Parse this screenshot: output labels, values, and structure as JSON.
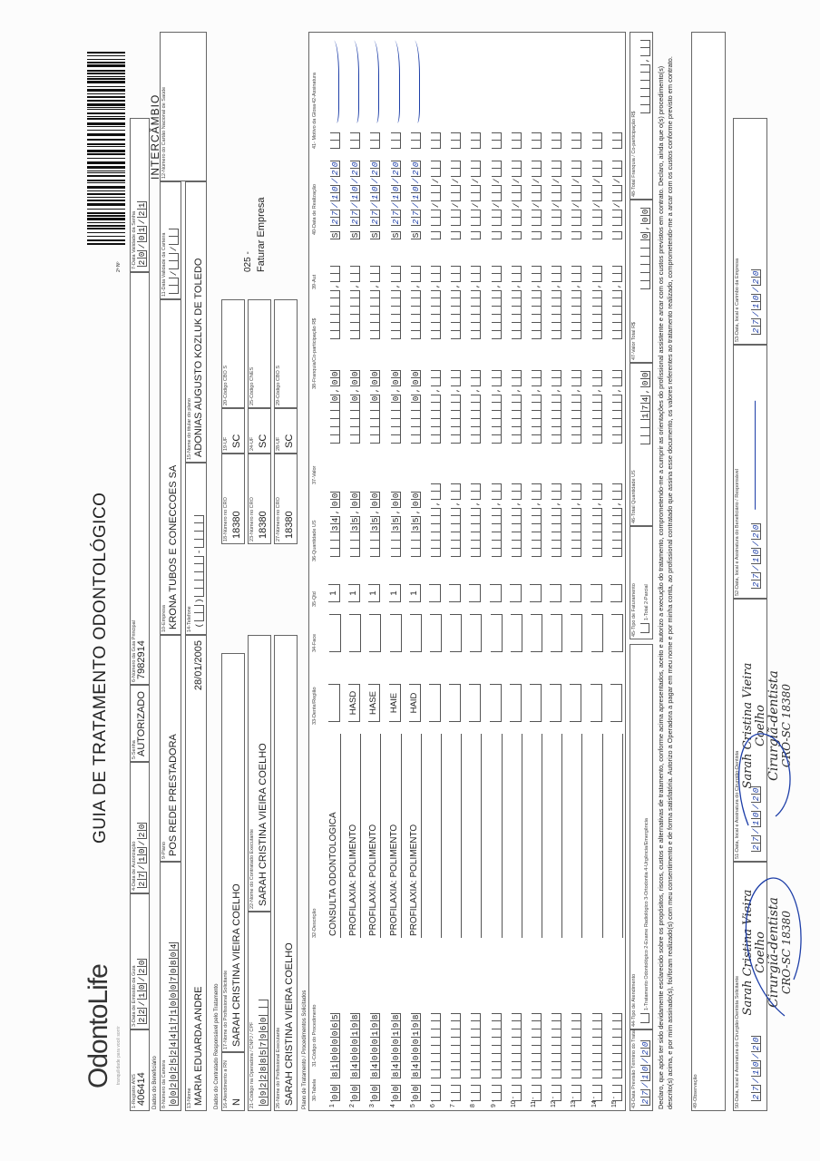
{
  "header": {
    "logo": "OdontoLife",
    "tagline": "tranquilidade para você sorrir",
    "title": "GUIA DE TRATAMENTO ODONTOLÓGICO",
    "copy_label": "2ª Nº",
    "guide_number": "401847",
    "guide_type": "INTERCÂMBIO"
  },
  "sections": {
    "beneficiary": "Dados do Beneficiário",
    "contractor": "Dados do Contratado Responsável pelo Tratamento",
    "plan": "Plano de Tratamento / Procedimentos Solicitados"
  },
  "fields": {
    "reg_ans": {
      "label": "1-Registro ANS",
      "value": "406414"
    },
    "emission_date": {
      "label": "3-Data de Emissão da Guia",
      "cells": "22/10/20"
    },
    "auth_date": {
      "label": "4-Data de Autorização",
      "cells": "27/10/20"
    },
    "password": {
      "label": "5-Senha",
      "value": "AUTORIZADO"
    },
    "main_guide": {
      "label": "6-Número da Guia Principal",
      "value": "7982914"
    },
    "password_validity": {
      "label": "7-Data Validade da Senha",
      "cells": "20/01/21"
    },
    "card_number": {
      "label": "8-Número da Carteira",
      "cells": "00202524417100070804"
    },
    "plan": {
      "label": "9-Plano",
      "value": "POS REDE PRESTADORA"
    },
    "company": {
      "label": "10-Empresa",
      "value": "KRONA TUBOS E CONECCOES SA"
    },
    "card_validity": {
      "label": "11-Data Validade da Carteira",
      "cells": "  /  /  "
    },
    "sus_card": {
      "label": "12-Número do Cartão Nacional de Saúde",
      "value": ""
    },
    "name": {
      "label": "13-Nome",
      "value": "MARIA EDUARDA ANDRE",
      "extra": "28/01/2005"
    },
    "phone": {
      "label": "14-Telefone",
      "cells": "(  )     -    "
    },
    "holder": {
      "label": "15-Nome do titular do plano",
      "value": "ADONIAS AUGUSTO KOZLUK DE TOLEDO"
    },
    "rn": {
      "label": "16-Atendimento a RN",
      "value": "N"
    },
    "requester": {
      "label": "17-Nome do Profissional Solicitante",
      "value": "SARAH CRISTINA VIEIRA COELHO"
    },
    "cro1": {
      "label": "18-Número no CRO",
      "value": "18380"
    },
    "uf1": {
      "label": "19-UF",
      "value": "SC"
    },
    "cbo1": {
      "label": "20-Código CBO S",
      "value": ""
    },
    "operator_code": {
      "label": "21-Código na Operadora / CNPJ / CPF",
      "cells": "09228857960  "
    },
    "contractor": {
      "label": "22-Nome do Contratado Executante",
      "value": "SARAH CRISTINA VIEIRA COELHO"
    },
    "cro2": {
      "label": "23-Número no CRO",
      "value": "18380"
    },
    "uf2": {
      "label": "24-UF",
      "value": "SC"
    },
    "cnes": {
      "label": "25-Código CNES",
      "value": ""
    },
    "executor": {
      "label": "26-Nome do Profissional Executante",
      "value": "SARAH CRISTINA VIEIRA COELHO"
    },
    "cro3": {
      "label": "27-Número no CRO",
      "value": "18380"
    },
    "uf3": {
      "label": "28-UF",
      "value": "SC"
    },
    "cbo3": {
      "label": "29-Código CBO S",
      "value": ""
    }
  },
  "billing_note": {
    "code": "025 -",
    "text": "Faturar Empresa"
  },
  "table": {
    "headers": [
      "30-Tabela",
      "31-Código do Procedimento",
      "32-Descrição",
      "33-Dente/Região",
      "34-Face",
      "35-Qtd",
      "36-Quantidade US",
      "37-Valor",
      "38-Franquia/Co-participação R$",
      "39-Aut",
      "40-Data de Realização",
      "41- Motivo da Glosa",
      "42-Assinatura"
    ],
    "rows": [
      {
        "n": "1 -",
        "tabela": "00",
        "code": "81000065",
        "desc": "CONSULTA ODONTOLOGICA",
        "dente": "",
        "face": "",
        "qtd": "1",
        "us": "   34,00",
        "valor": "     0,00",
        "franq": "      ,  ",
        "aut": "S",
        "date": "27/10/20",
        "glosa": "",
        "signed": true
      },
      {
        "n": "2 -",
        "tabela": "00",
        "code": "84000198",
        "desc": "PROFILAXIA: POLIMENTO",
        "dente": "HASD",
        "face": "",
        "qtd": "1",
        "us": "   35,00",
        "valor": "     0,00",
        "franq": "      ,  ",
        "aut": "S",
        "date": "27/10/20",
        "glosa": "",
        "signed": true
      },
      {
        "n": "3 -",
        "tabela": "00",
        "code": "84000198",
        "desc": "PROFILAXIA: POLIMENTO",
        "dente": "HASE",
        "face": "",
        "qtd": "1",
        "us": "   35,00",
        "valor": "     0,00",
        "franq": "      ,  ",
        "aut": "S",
        "date": "27/10/20",
        "glosa": "",
        "signed": true
      },
      {
        "n": "4 -",
        "tabela": "00",
        "code": "84000198",
        "desc": "PROFILAXIA: POLIMENTO",
        "dente": "HAIE",
        "face": "",
        "qtd": "1",
        "us": "   35,00",
        "valor": "     0,00",
        "franq": "      ,  ",
        "aut": "S",
        "date": "27/10/20",
        "glosa": "",
        "signed": true
      },
      {
        "n": "5 -",
        "tabela": "00",
        "code": "84000198",
        "desc": "PROFILAXIA: POLIMENTO",
        "dente": "HAID",
        "face": "",
        "qtd": "1",
        "us": "   35,00",
        "valor": "     0,00",
        "franq": "      ,  ",
        "aut": "S",
        "date": "27/10/20",
        "glosa": "",
        "signed": true
      },
      {
        "n": "6 -"
      },
      {
        "n": "7 -"
      },
      {
        "n": "8 -"
      },
      {
        "n": "9 -"
      },
      {
        "n": "10 -"
      },
      {
        "n": "11 -"
      },
      {
        "n": "12 -"
      },
      {
        "n": "13 -"
      },
      {
        "n": "14 -"
      },
      {
        "n": "15 -"
      }
    ]
  },
  "footer": {
    "end_date": {
      "label": "43-Data Previsão Término do Tratamento",
      "cells": "27/10/20"
    },
    "care_type": {
      "label": "44-Tipo de Atendimento",
      "options": "1-Tratamento Odontológico  2-Exame Radiológico  3-Ortodontia  4-Urgência/Emergência"
    },
    "billing_type": {
      "label": "45-Tipo de Faturamento",
      "options": "1-Total  2-Parcial"
    },
    "total_us": {
      "label": "46-Total Quantidade US",
      "cells": "   174,00"
    },
    "total_value": {
      "label": "47-Valor Total R$",
      "cells": "      0,00"
    },
    "total_franq": {
      "label": "48-Total Franquia / Co-participação R$",
      "cells": "      ,  "
    }
  },
  "declaration": "Declaro, que após ter sido devidamente esclarecido sobre os propósitos, riscos, custos e alternativas de tratamento, conforme acima apresentados, aceito e autorizo a execução do tratamento, comprometendo-me a cumprir as orientações do profissional assistente e arcar com os custos previstos em contrato. Declaro, ainda que o(s) procedimento(s) descrito(s) acima, e por mim assinado(s), foi/foram realizado(s) com meu consentimento e de forma satisfatória. Autorizo a Operadora a pagar em meu nome e por minha conta, ao profissional contratado que assina esse documento, os valores referentes ao tratamento realizado, comprometendo-me a arcar com os custos conforme previsto em contrato.",
  "observation": {
    "label": "49-Observação",
    "value": ""
  },
  "signatures": [
    {
      "label": "50-Data, local e Assinatura do Cirurgião-Dentista Solicitante",
      "date": "27/10/20"
    },
    {
      "label": "51-Data, local e Assinatura do Cirurgião-Dentista",
      "date": "27/10/20"
    },
    {
      "label": "52-Data, local e Assinatura do Beneficiário / Responsável",
      "date": "27/10/20"
    },
    {
      "label": "53-Data, local e Carimbo da Empresa",
      "date": "27/10/20"
    }
  ],
  "stamp": {
    "name": "Sarah Cristina Vieira Coelho",
    "role": "Cirurgiã-dentista",
    "cro": "CRO-SC 18380"
  },
  "colors": {
    "ink": "#1e3fa8",
    "border": "#666666",
    "band": "#e9e9e9"
  }
}
